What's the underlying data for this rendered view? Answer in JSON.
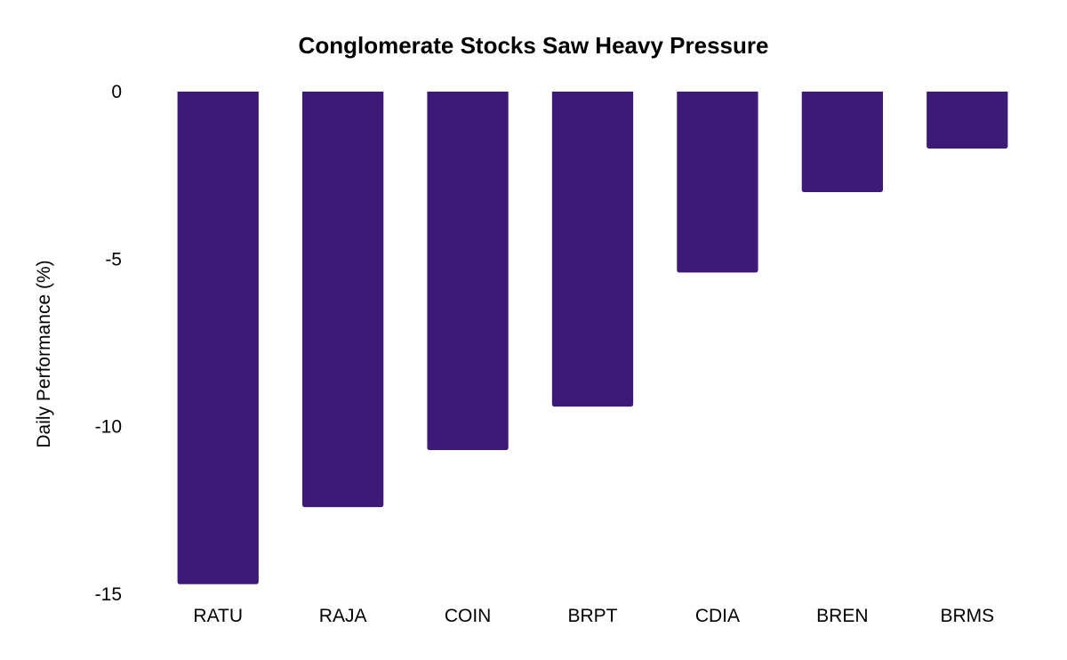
{
  "chart_data": {
    "type": "bar",
    "title": "Conglomerate Stocks Saw Heavy Pressure",
    "xlabel": "",
    "ylabel": "Daily Performance (%)",
    "categories": [
      "RATU",
      "RAJA",
      "COIN",
      "BRPT",
      "CDIA",
      "BREN",
      "BRMS"
    ],
    "series": [
      {
        "name": "Daily Performance (%)",
        "values": [
          -14.7,
          -12.4,
          -10.7,
          -9.4,
          -5.4,
          -3.0,
          -1.7
        ]
      }
    ],
    "ylim": [
      -15,
      0
    ],
    "yticks": [
      0,
      -5,
      -10,
      -15
    ],
    "ytick_labels": [
      "0",
      "-5",
      "-10",
      "-15"
    ],
    "grid": false,
    "legend": "none",
    "colors": {
      "bar": "#3d1a78",
      "background": "#ffffff",
      "text": "#000000"
    }
  }
}
